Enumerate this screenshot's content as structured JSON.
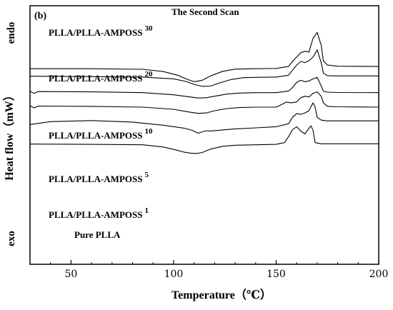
{
  "chart_data": {
    "type": "line",
    "panel_label": "(b)",
    "title": "The Second Scan",
    "xlabel": "Temperature（℃）",
    "ylabel": "Heat flow（mW）",
    "y_top_label": "endo",
    "y_bottom_label": "exo",
    "xlim": [
      30,
      200
    ],
    "xticks": [
      {
        "value": 50,
        "label": "50"
      },
      {
        "value": 100,
        "label": "100"
      },
      {
        "value": 150,
        "label": "150"
      },
      {
        "value": 200,
        "label": "200"
      }
    ],
    "grid": false,
    "y_units": "relative heat flow, curves vertically offset (no numeric y scale printed)",
    "series": [
      {
        "name": "PLLA/PLLA-AMPOSS",
        "name_sup": "30",
        "x": [
          30,
          60,
          85,
          95,
          102,
          106,
          110,
          114,
          118,
          124,
          130,
          140,
          150,
          156,
          158,
          160,
          162,
          164,
          166,
          168,
          170,
          172,
          173,
          175,
          180,
          200
        ],
        "y": [
          2.8,
          2.8,
          2.76,
          2.6,
          2.35,
          2.1,
          1.9,
          2.0,
          2.3,
          2.62,
          2.77,
          2.8,
          2.82,
          2.95,
          3.3,
          3.6,
          3.9,
          4.0,
          3.95,
          4.9,
          5.3,
          4.4,
          3.35,
          3.05,
          2.97,
          2.95
        ]
      },
      {
        "name": "PLLA/PLLA-AMPOSS",
        "name_sup": "20",
        "x": [
          30,
          60,
          85,
          100,
          106,
          110,
          114,
          118,
          122,
          128,
          134,
          140,
          150,
          156,
          158,
          160,
          162,
          164,
          166,
          168,
          170,
          172,
          173,
          175,
          180,
          200
        ],
        "y": [
          2.28,
          2.25,
          2.22,
          2.1,
          1.92,
          1.72,
          1.58,
          1.6,
          1.8,
          2.05,
          2.18,
          2.2,
          2.22,
          2.35,
          2.7,
          3.05,
          3.3,
          3.22,
          3.35,
          3.6,
          4.1,
          3.2,
          2.5,
          2.32,
          2.3,
          2.3
        ]
      },
      {
        "name": "PLLA/PLLA-AMPOSS",
        "name_sup": "10",
        "x": [
          30,
          32,
          34,
          60,
          85,
          100,
          108,
          112,
          116,
          120,
          126,
          132,
          140,
          150,
          156,
          158,
          160,
          162,
          164,
          166,
          168,
          170,
          172,
          173,
          175,
          180,
          200
        ],
        "y": [
          1.25,
          1.1,
          1.22,
          1.2,
          1.15,
          1.0,
          0.85,
          0.78,
          0.8,
          0.9,
          1.05,
          1.12,
          1.15,
          1.15,
          1.25,
          1.5,
          1.85,
          2.0,
          1.9,
          1.95,
          2.1,
          2.2,
          1.6,
          1.25,
          1.18,
          1.16,
          1.15
        ]
      },
      {
        "name": "PLLA/PLLA-AMPOSS",
        "name_sup": "5",
        "x": [
          30,
          32,
          34,
          60,
          85,
          100,
          108,
          112,
          116,
          120,
          126,
          132,
          140,
          150,
          153,
          155,
          157,
          160,
          162,
          164,
          166,
          168,
          170,
          172,
          173,
          175,
          180,
          200
        ],
        "y": [
          0.25,
          0.1,
          0.22,
          0.2,
          0.15,
          0.0,
          -0.2,
          -0.28,
          -0.25,
          -0.1,
          0.05,
          0.12,
          0.15,
          0.15,
          0.35,
          0.5,
          0.45,
          0.5,
          0.8,
          0.9,
          0.85,
          1.1,
          1.2,
          0.9,
          0.45,
          0.2,
          0.17,
          0.15
        ]
      },
      {
        "name": "PLLA/PLLA-AMPOSS",
        "name_sup": "1",
        "x": [
          30,
          40,
          60,
          80,
          95,
          105,
          109,
          112,
          114,
          116,
          118,
          122,
          130,
          140,
          150,
          156,
          158,
          160,
          162,
          164,
          166,
          168,
          169,
          170,
          172,
          175,
          180,
          200
        ],
        "y": [
          -1.05,
          -0.85,
          -0.78,
          -0.88,
          -1.1,
          -1.3,
          -1.45,
          -1.65,
          -1.55,
          -1.48,
          -1.5,
          -1.45,
          -1.35,
          -1.28,
          -1.2,
          -1.0,
          -0.55,
          -0.3,
          -0.35,
          -0.25,
          -0.1,
          0.45,
          0.15,
          -0.55,
          -0.75,
          -0.8,
          -0.8,
          -0.8
        ]
      },
      {
        "name": "Pure PLLA",
        "name_sup": "",
        "x": [
          30,
          60,
          85,
          95,
          101,
          105,
          108,
          111,
          114,
          118,
          124,
          130,
          140,
          150,
          154,
          156,
          158,
          160,
          162,
          164,
          166,
          167,
          168,
          169,
          172,
          175,
          180,
          200
        ],
        "y": [
          -2.4,
          -2.42,
          -2.45,
          -2.6,
          -2.8,
          -2.95,
          -3.02,
          -3.05,
          -2.98,
          -2.75,
          -2.55,
          -2.48,
          -2.45,
          -2.42,
          -2.3,
          -1.9,
          -1.4,
          -1.2,
          -1.5,
          -1.7,
          -1.3,
          -1.15,
          -1.45,
          -2.3,
          -2.38,
          -2.38,
          -2.38,
          -2.38
        ]
      }
    ]
  }
}
